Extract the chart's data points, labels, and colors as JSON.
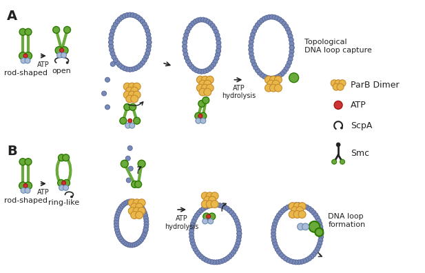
{
  "background_color": "#ffffff",
  "label_A": "A",
  "label_B": "B",
  "legend_items": [
    {
      "label": "ParB Dimer",
      "type": "circles",
      "color": "#e8b84b"
    },
    {
      "label": "ATP",
      "type": "circle_red",
      "color": "#cc3333"
    },
    {
      "label": "ScpA",
      "type": "hook",
      "color": "#333333"
    },
    {
      "label": "Smc",
      "type": "y_shape",
      "color": "#333333"
    }
  ],
  "text_annotations": {
    "rod_shaped_A": "rod-shaped",
    "open": "open",
    "ATP_A": "ATP",
    "ATP_hydrolysis_A": "ATP\nhydrolysis",
    "topological": "Topological\nDNA loop capture",
    "rod_shaped_B": "rod-shaped",
    "ring_like": "ring-like",
    "ATP_B": "ATP",
    "ATP_hydrolysis_B": "ATP\nhydrolysis",
    "dna_loop": "DNA loop\nformation"
  },
  "colors": {
    "green_body": "#6aaa3a",
    "green_dark": "#4a8a1a",
    "orange_parb": "#e8b84b",
    "orange_outline": "#c8882b",
    "blue_dna": "#7a8ab8",
    "blue_dna_outline": "#5a6a98",
    "red_atp": "#cc3333",
    "light_blue": "#aabbd8",
    "black": "#222222",
    "white": "#ffffff"
  },
  "font_sizes": {
    "label": 14,
    "annotation": 8,
    "legend": 9
  }
}
